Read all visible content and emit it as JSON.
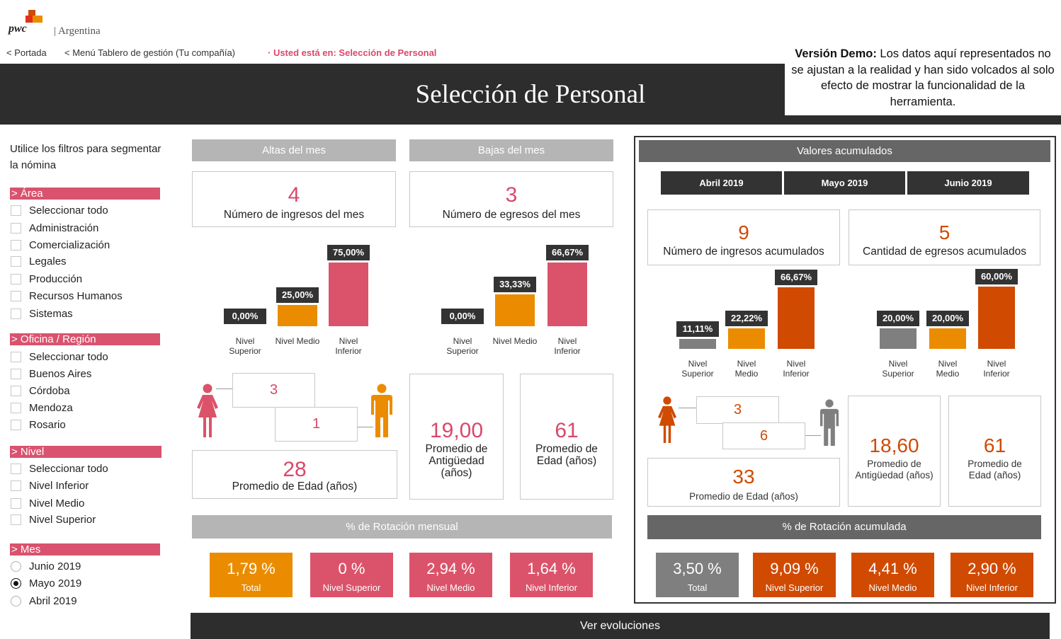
{
  "brand": {
    "logo": "pwc",
    "country": "Argentina"
  },
  "nav": {
    "portada": "< Portada",
    "menu": "< Menú Tablero de gestión (Tu compañía)",
    "here": "· Usted está en: Selección de Personal"
  },
  "title": "Selección de Personal",
  "demo": {
    "bold": "Versión Demo:",
    "text": " Los datos aquí representados no se ajustan a la realidad y han sido volcados al solo efecto de mostrar la funcionalidad de la herramienta."
  },
  "sidebar": {
    "intro": "Utilice los filtros para segmentar la nómina",
    "area": {
      "label": "> Área",
      "options": [
        "Seleccionar todo",
        "Administración",
        "Comercialización",
        "Legales",
        "Producción",
        "Recursos Humanos",
        "Sistemas"
      ]
    },
    "oficina": {
      "label": "> Oficina / Región",
      "options": [
        "Seleccionar todo",
        "Buenos Aires",
        "Córdoba",
        "Mendoza",
        "Rosario"
      ]
    },
    "nivel": {
      "label": "> Nivel",
      "options": [
        "Seleccionar todo",
        "Nivel Inferior",
        "Nivel Medio",
        "Nivel Superior"
      ]
    },
    "mes": {
      "label": "> Mes",
      "options": [
        "Junio 2019",
        "Mayo 2019",
        "Abril 2019"
      ],
      "selected": "Mayo 2019"
    }
  },
  "monthly": {
    "altas": {
      "header": "Altas del mes",
      "value": "4",
      "label": "Número de ingresos del mes",
      "chart": {
        "categories": [
          "Nivel Superior",
          "Nivel Medio",
          "Nivel Inferior"
        ],
        "values": [
          0.0,
          25.0,
          75.0
        ],
        "labels": [
          "0,00%",
          "25,00%",
          "75,00%"
        ],
        "colors": [
          "#eb8c00",
          "#eb8c00",
          "#db536a"
        ]
      }
    },
    "bajas": {
      "header": "Bajas del mes",
      "value": "3",
      "label": "Número de egresos del mes",
      "chart": {
        "categories": [
          "Nivel Superior",
          "Nivel Medio",
          "Nivel Inferior"
        ],
        "values": [
          0.0,
          33.33,
          66.67
        ],
        "labels": [
          "0,00%",
          "33,33%",
          "66,67%"
        ],
        "colors": [
          "#eb8c00",
          "#eb8c00",
          "#db536a"
        ]
      }
    },
    "gender": {
      "female": "3",
      "male": "1"
    },
    "edad": {
      "value": "28",
      "label": "Promedio de Edad (años)"
    },
    "antiguedad": {
      "value": "19,00",
      "label": "Promedio de Antigüedad (años)"
    },
    "edad2": {
      "value": "61",
      "label": "Promedio de Edad (años)"
    },
    "rotacion": {
      "header": "% de Rotación mensual",
      "items": [
        {
          "value": "1,79 %",
          "label": "Total",
          "color": "#eb8c00"
        },
        {
          "value": "0 %",
          "label": "Nivel Superior",
          "color": "#db536a"
        },
        {
          "value": "2,94 %",
          "label": "Nivel Medio",
          "color": "#db536a"
        },
        {
          "value": "1,64 %",
          "label": "Nivel Inferior",
          "color": "#db536a"
        }
      ]
    }
  },
  "accum": {
    "header": "Valores acumulados",
    "months": [
      "Abril 2019",
      "Mayo 2019",
      "Junio 2019"
    ],
    "ingresos": {
      "value": "9",
      "label": "Número de ingresos acumulados",
      "chart": {
        "categories": [
          "Nivel Superior",
          "Nivel Medio",
          "Nivel Inferior"
        ],
        "values": [
          11.11,
          22.22,
          66.67
        ],
        "labels": [
          "11,11%",
          "22,22%",
          "66,67%"
        ],
        "colors": [
          "#7f7f7f",
          "#eb8c00",
          "#d04a02"
        ]
      }
    },
    "egresos": {
      "value": "5",
      "label": "Cantidad de egresos acumulados",
      "chart": {
        "categories": [
          "Nivel Superior",
          "Nivel Medio",
          "Nivel Inferior"
        ],
        "values": [
          20.0,
          20.0,
          60.0
        ],
        "labels": [
          "20,00%",
          "20,00%",
          "60,00%"
        ],
        "colors": [
          "#7f7f7f",
          "#eb8c00",
          "#d04a02"
        ]
      }
    },
    "gender": {
      "female": "3",
      "male": "6"
    },
    "edad": {
      "value": "33",
      "label": "Promedio de Edad (años)"
    },
    "antiguedad": {
      "value": "18,60",
      "label": "Promedio de Antigüedad (años)"
    },
    "edad2": {
      "value": "61",
      "label": "Promedio de Edad (años)"
    },
    "rotacion": {
      "header": "% de Rotación acumulada",
      "items": [
        {
          "value": "3,50 %",
          "label": "Total",
          "color": "#7f7f7f"
        },
        {
          "value": "9,09 %",
          "label": "Nivel Superior",
          "color": "#d04a02"
        },
        {
          "value": "4,41 %",
          "label": "Nivel Medio",
          "color": "#d04a02"
        },
        {
          "value": "2,90 %",
          "label": "Nivel Inferior",
          "color": "#d04a02"
        }
      ]
    }
  },
  "footer": "Ver evoluciones",
  "colors": {
    "pink": "#d9486a",
    "orange": "#eb8c00",
    "dark_orange": "#d04a02",
    "gray": "#7f7f7f",
    "dark": "#2d2d2d"
  }
}
